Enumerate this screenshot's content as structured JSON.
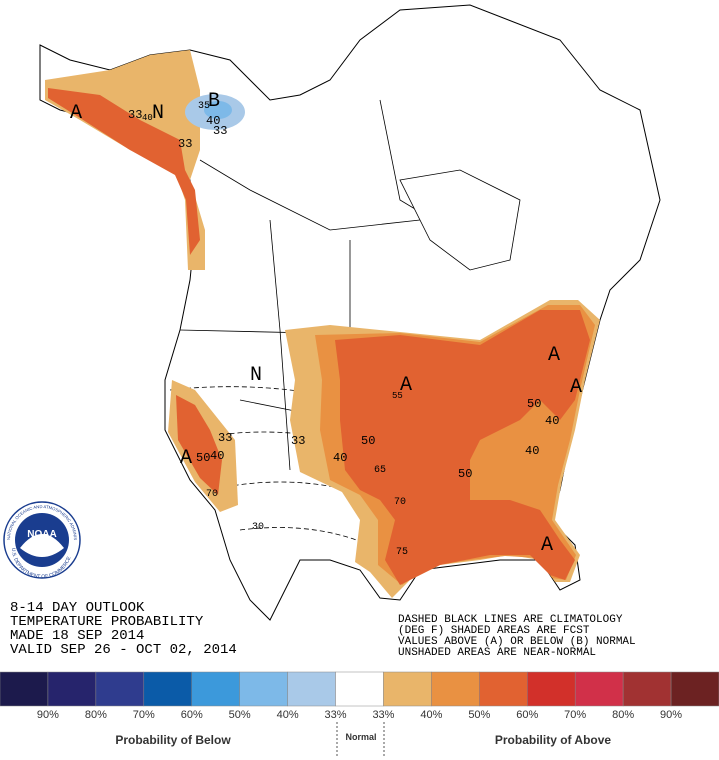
{
  "header": {
    "lines": [
      "8-14 DAY OUTLOOK",
      "TEMPERATURE PROBABILITY",
      "MADE  18 SEP 2014",
      "VALID  SEP 26 - OCT 02, 2014"
    ]
  },
  "notes": [
    "DASHED BLACK LINES ARE CLIMATOLOGY",
    "(DEG F) SHADED AREAS ARE FCST",
    "VALUES ABOVE (A) OR BELOW (B) NORMAL",
    "UNSHADED AREAS ARE NEAR-NORMAL"
  ],
  "logo": {
    "name": "NOAA",
    "ring_top": "NATIONAL OCEANIC AND ATMOSPHERIC ADMINISTRATION",
    "ring_bottom": "U.S. DEPARTMENT OF COMMERCE"
  },
  "map": {
    "labels": [
      "A",
      "33",
      "40",
      "N",
      "35",
      "B",
      "40",
      "33",
      "33",
      "N",
      "A",
      "55",
      "A",
      "A",
      "50",
      "40",
      "40",
      "50",
      "65",
      "70",
      "75",
      "A",
      "50",
      "40",
      "33",
      "33",
      "A",
      "50",
      "40",
      "70",
      "30"
    ]
  },
  "legend": {
    "colors": [
      "#1c1a4c",
      "#26246c",
      "#2f3c8e",
      "#0b5ba8",
      "#3c99db",
      "#7db9e8",
      "#a9c9e8",
      "#ffffff",
      "#e9b56a",
      "#e99142",
      "#e16231",
      "#d2302a",
      "#d13049",
      "#a13232",
      "#6c2222"
    ],
    "labels": [
      "90%",
      "80%",
      "70%",
      "60%",
      "50%",
      "40%",
      "33%",
      "33%",
      "40%",
      "50%",
      "60%",
      "70%",
      "80%",
      "90%"
    ],
    "below": "Probability of Below",
    "normal": "Normal",
    "above": "Probability of Above"
  }
}
